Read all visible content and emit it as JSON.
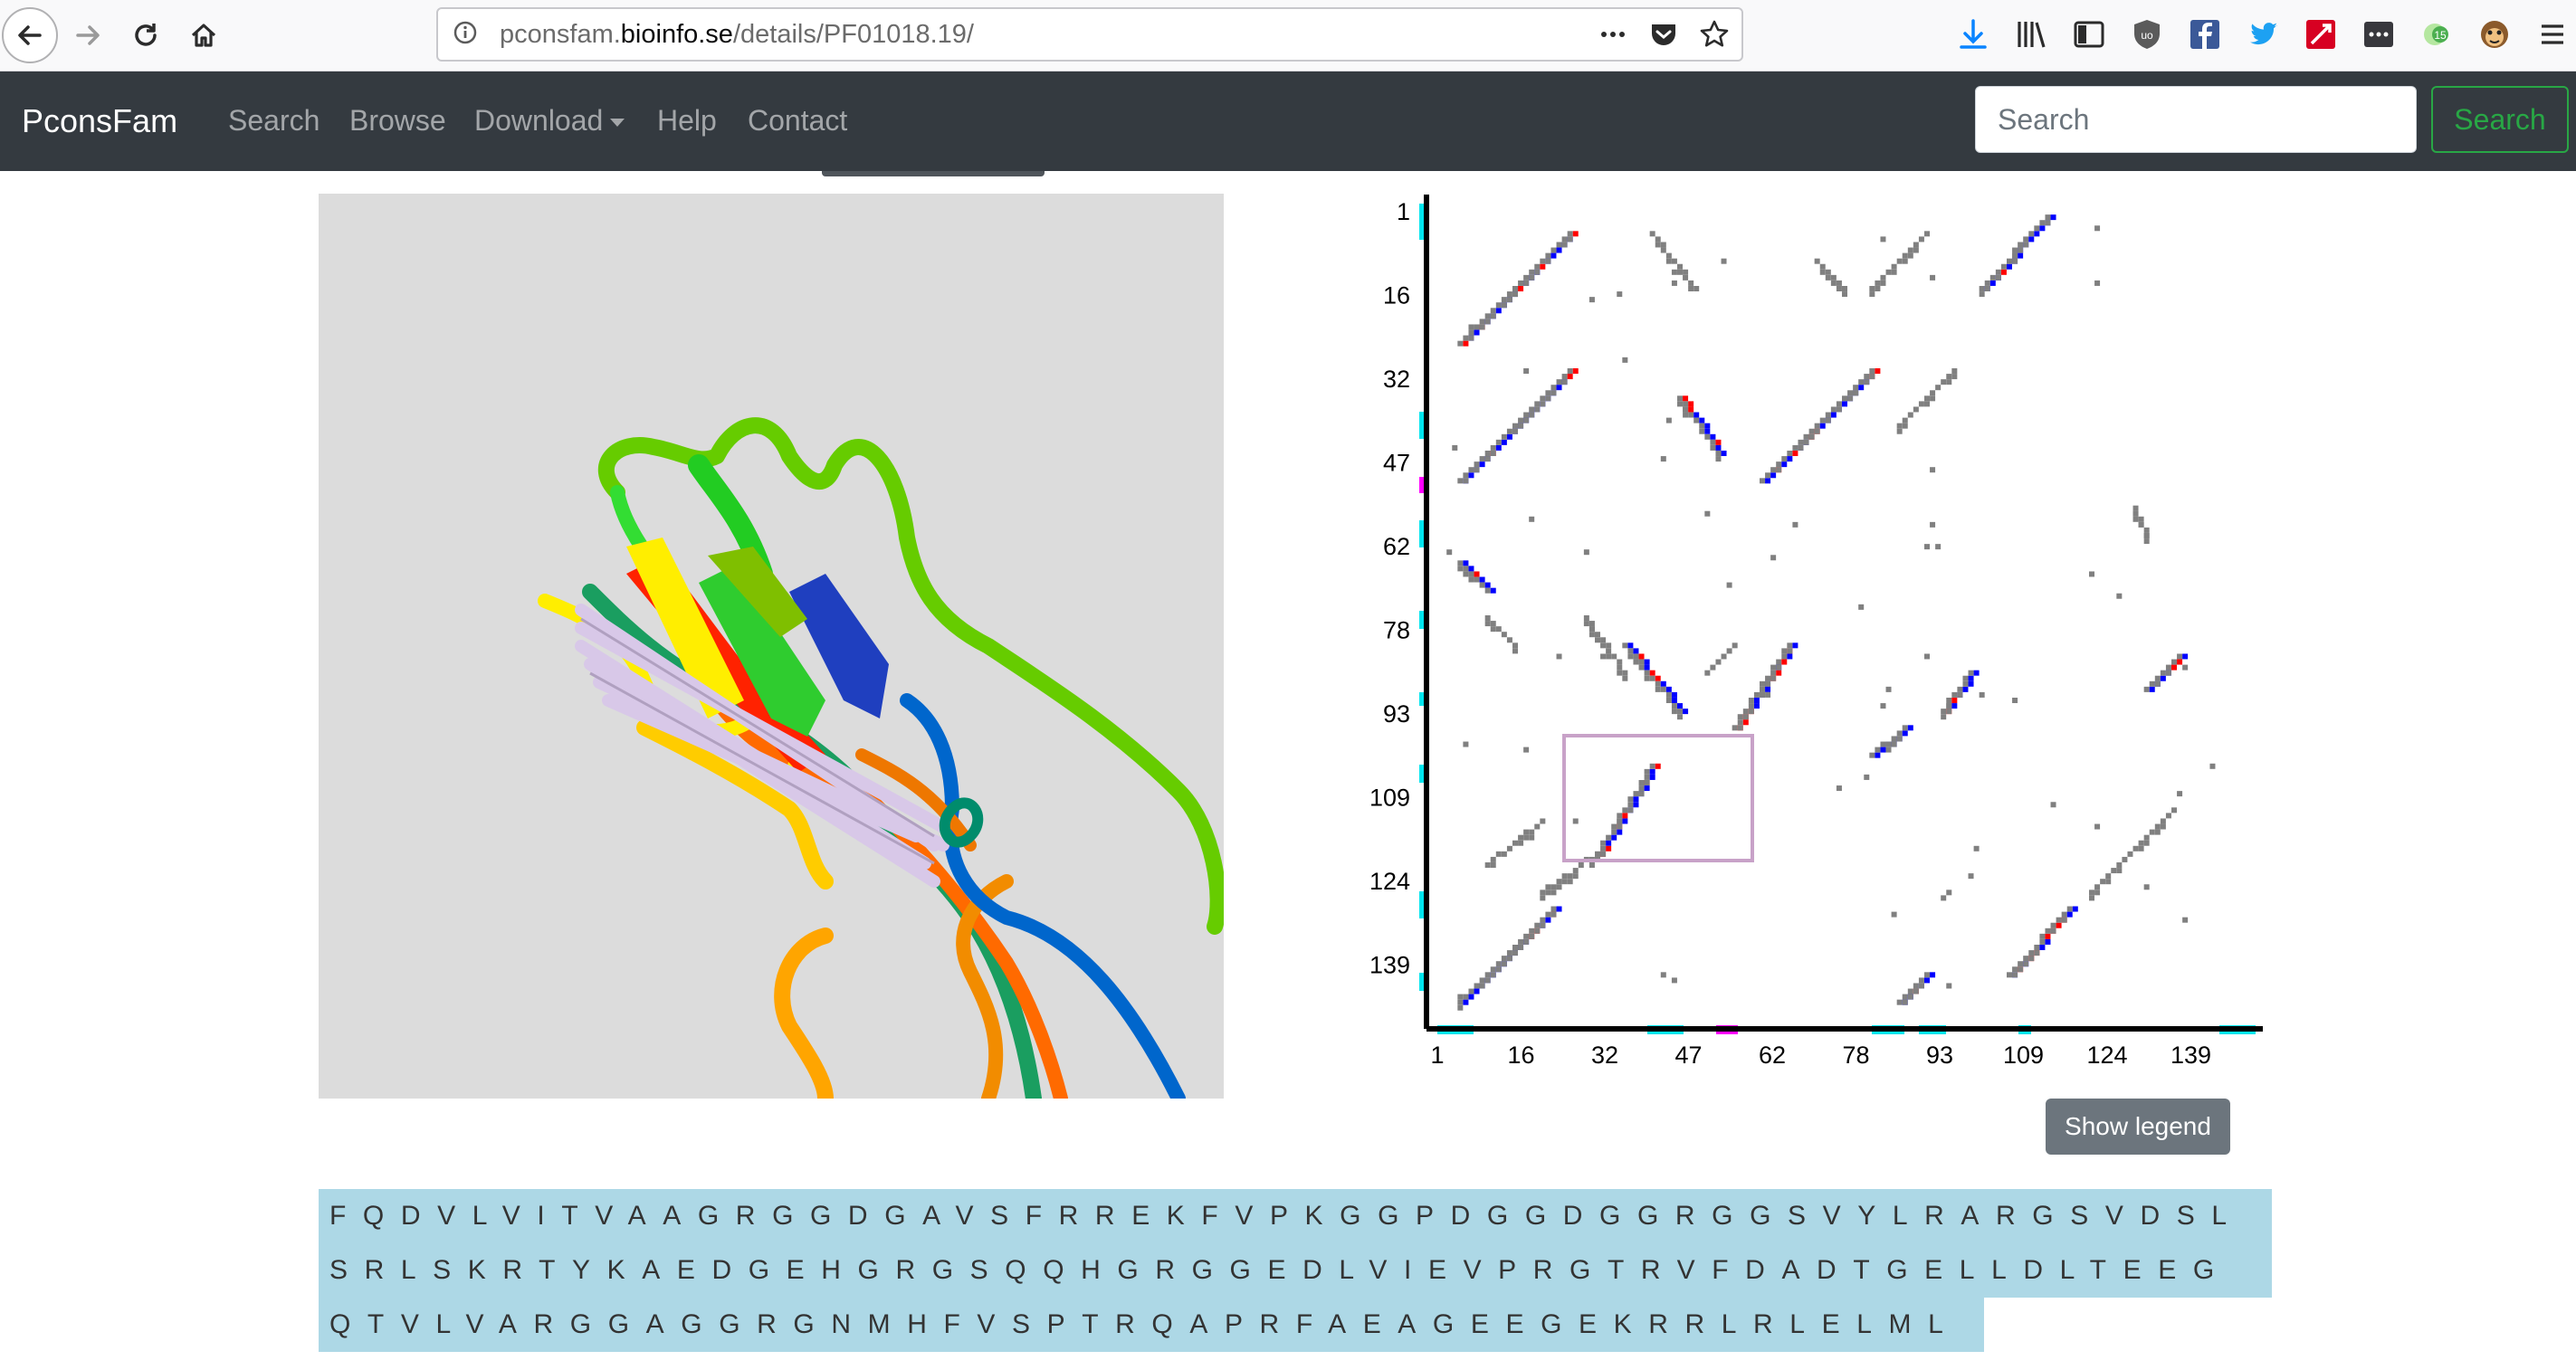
{
  "browser": {
    "url_prefix": "pconsfam.",
    "url_domain": "bioinfo.se",
    "url_path": "/details/PF01018.19/",
    "icons": [
      "back-arrow-icon",
      "forward-arrow-icon",
      "reload-icon",
      "home-icon",
      "info-icon",
      "more-dots-icon",
      "pocket-icon",
      "bookmark-star-icon",
      "download-icon",
      "library-icon",
      "sidebar-icon",
      "ublock-icon",
      "facebook-icon",
      "twitter-icon",
      "red-extension-icon",
      "dots-extension-icon",
      "green-extension-icon",
      "monkey-extension-icon",
      "menu-icon"
    ]
  },
  "navbar": {
    "brand": "PconsFam",
    "links": [
      "Search",
      "Browse",
      "Download",
      "Help",
      "Contact"
    ],
    "search_placeholder": "Search",
    "search_button": "Search"
  },
  "contact_map": {
    "y_ticks": [
      "1",
      "16",
      "32",
      "47",
      "62",
      "78",
      "93",
      "109",
      "124",
      "139"
    ],
    "x_ticks": [
      "1",
      "16",
      "32",
      "47",
      "62",
      "78",
      "93",
      "109",
      "124",
      "139"
    ],
    "colors": {
      "predicted": "#0000ff",
      "true": "#ff0000",
      "other": "#808080",
      "helix": "#00e5ee",
      "strand": "#ff00ff",
      "box": "#c8a2c8"
    }
  },
  "legend_button": "Show legend",
  "sequence": {
    "lines": [
      "FQDVLVITVAAGRGGDGAVSFRREKFVPKGGPDGGDGGRGGSVYLRARGSVDSL",
      "SRLSKRTYKAEDGEHGRGSQQHGRGGEDLVIEVPRGTRVFDADTGELLDLTEEG",
      "QTVLVARGGAGGRGNMHFVSPTRQAPRFAEAGEEGEKRRLRLELML"
    ]
  }
}
